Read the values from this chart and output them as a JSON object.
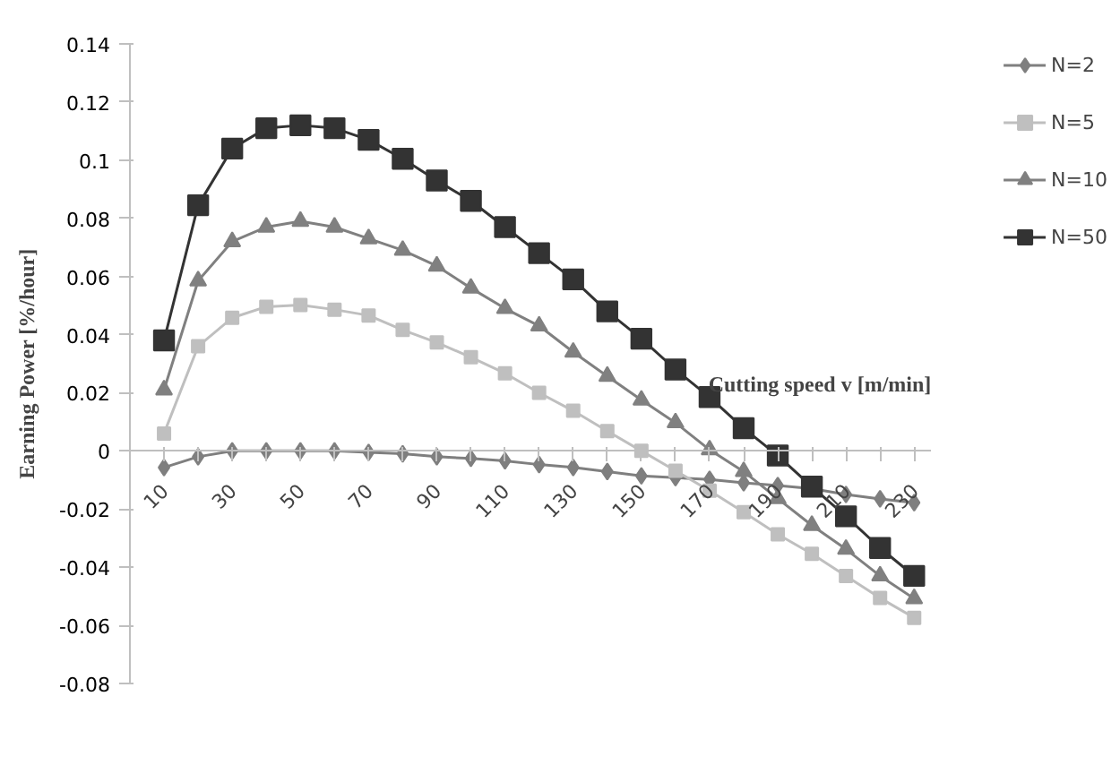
{
  "chart_data": {
    "type": "line",
    "ylabel": "Earning Power [%/hour]",
    "xlabel": "Cutting speed v [m/min]",
    "categories": [
      "10",
      null,
      "30",
      null,
      "50",
      null,
      "70",
      null,
      "90",
      null,
      "110",
      null,
      "130",
      null,
      "150",
      null,
      "170",
      null,
      "190",
      null,
      "210",
      null,
      "230"
    ],
    "ylim": [
      -0.08,
      0.14
    ],
    "yticks": [
      -0.08,
      -0.06,
      -0.04,
      -0.02,
      0,
      0.02,
      0.04,
      0.06,
      0.08,
      0.1,
      0.12,
      0.14
    ],
    "grid": false,
    "legend": "right",
    "series": [
      {
        "name": "N=2",
        "color": "#7f7f7f",
        "marker": "diamond",
        "values": [
          -0.0057,
          -0.002,
          0,
          0,
          0,
          0,
          -0.0005,
          -0.001,
          -0.002,
          -0.0026,
          -0.0034,
          -0.0047,
          -0.0057,
          -0.0071,
          -0.0086,
          -0.0092,
          -0.0098,
          -0.011,
          -0.0119,
          -0.013,
          -0.015,
          -0.0165,
          -0.0178
        ]
      },
      {
        "name": "N=5",
        "color": "#bfbfbf",
        "marker": "square",
        "values": [
          0.006,
          0.036,
          0.0458,
          0.0496,
          0.0502,
          0.0486,
          0.0466,
          0.0416,
          0.0373,
          0.0322,
          0.0267,
          0.02,
          0.0138,
          0.0068,
          0,
          -0.0068,
          -0.0137,
          -0.0211,
          -0.0287,
          -0.0354,
          -0.043,
          -0.0506,
          -0.0574
        ]
      },
      {
        "name": "N=10",
        "color": "#808080",
        "marker": "triangle",
        "values": [
          0.021,
          0.0585,
          0.072,
          0.077,
          0.079,
          0.077,
          0.073,
          0.069,
          0.0636,
          0.056,
          0.049,
          0.043,
          0.034,
          0.0257,
          0.0175,
          0.0097,
          0.0004,
          -0.0071,
          -0.0164,
          -0.0256,
          -0.0338,
          -0.043,
          -0.0508
        ]
      },
      {
        "name": "N=50",
        "color": "#333333",
        "marker": "square",
        "values": [
          0.038,
          0.0845,
          0.104,
          0.111,
          0.112,
          0.111,
          0.107,
          0.1005,
          0.093,
          0.086,
          0.077,
          0.068,
          0.059,
          0.048,
          0.0386,
          0.028,
          0.0185,
          0.0078,
          -0.0016,
          -0.0123,
          -0.0225,
          -0.0334,
          -0.043
        ]
      }
    ]
  }
}
